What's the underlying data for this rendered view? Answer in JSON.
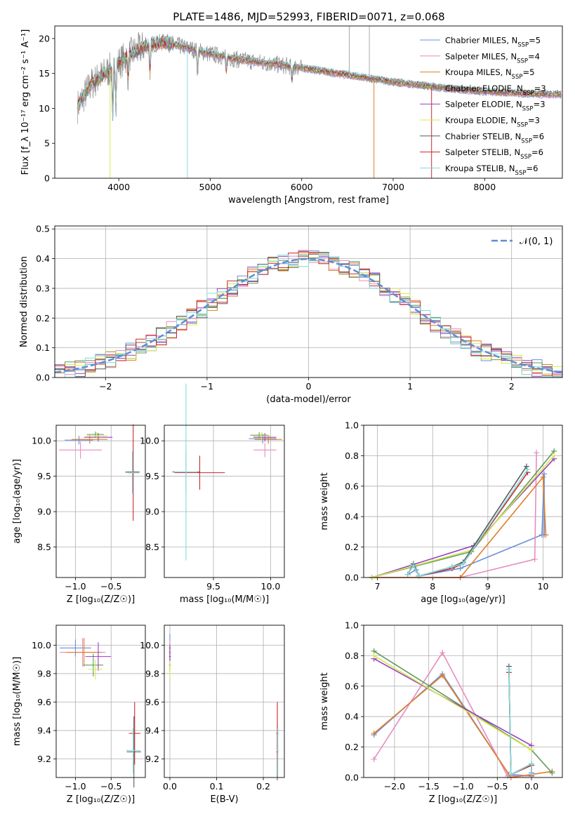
{
  "figure": {
    "title": "PLATE=1486, MJD=52993, FIBERID=0071, z=0.068"
  },
  "chart_data": [
    {
      "id": "spectrum",
      "type": "line",
      "title": "PLATE=1486, MJD=52993, FIBERID=0071, z=0.068",
      "xlabel": "wavelength [Angstrom, rest frame]",
      "ylabel": "Flux [f_λ 10⁻¹⁷ erg cm⁻² s⁻¹ A⁻¹]",
      "xlim": [
        3300,
        8850
      ],
      "ylim": [
        0,
        21.8
      ],
      "xticks": [
        4000,
        5000,
        6000,
        7000,
        8000
      ],
      "yticks": [
        0,
        5,
        10,
        15,
        20
      ],
      "grid": false,
      "legend_position": "top-right",
      "continuum": {
        "x": [
          3550,
          3700,
          3900,
          4100,
          4300,
          4500,
          4700,
          5000,
          5300,
          5600,
          6000,
          6500,
          7000,
          7500,
          8000,
          8500,
          8800
        ],
        "y": [
          10.3,
          13.5,
          15.5,
          17.5,
          19.0,
          19.5,
          18.8,
          17.8,
          17.0,
          16.5,
          15.8,
          14.8,
          13.8,
          13.0,
          12.4,
          12.1,
          12.0
        ]
      },
      "absorption_lines": [
        {
          "x": 3934,
          "depth": 7
        },
        {
          "x": 3969,
          "depth": 5
        },
        {
          "x": 4102,
          "depth": 3
        },
        {
          "x": 4341,
          "depth": 4
        },
        {
          "x": 4861,
          "depth": 3
        },
        {
          "x": 5175,
          "depth": 2
        },
        {
          "x": 5893,
          "depth": 2
        }
      ],
      "spikes": [
        {
          "x": 3905,
          "y_low": 0
        },
        {
          "x": 4750,
          "y_low": 0
        },
        {
          "x": 6790,
          "y_low": 0
        },
        {
          "x": 7420,
          "y_low": 0
        }
      ],
      "series": [
        {
          "name": "Chabrier MILES, N",
          "sub": "SSP",
          "suffix": "=5",
          "color": "#6a8fd8"
        },
        {
          "name": "Salpeter MILES, N",
          "sub": "SSP",
          "suffix": "=4",
          "color": "#e68cbe"
        },
        {
          "name": "Kroupa MILES, N",
          "sub": "SSP",
          "suffix": "=5",
          "color": "#e07d28"
        },
        {
          "name": "Chabrier ELODIE, N",
          "sub": "SSP",
          "suffix": "=3",
          "color": "#5f9a5f"
        },
        {
          "name": "Salpeter ELODIE, N",
          "sub": "SSP",
          "suffix": "=3",
          "color": "#9a3fbf"
        },
        {
          "name": "Kroupa ELODIE, N",
          "sub": "SSP",
          "suffix": "=3",
          "color": "#d4e84e"
        },
        {
          "name": "Chabrier STELIB, N",
          "sub": "SSP",
          "suffix": "=6",
          "color": "#5a5a5a"
        },
        {
          "name": "Salpeter STELIB, N",
          "sub": "SSP",
          "suffix": "=6",
          "color": "#c8272d"
        },
        {
          "name": "Kroupa STELIB, N",
          "sub": "SSP",
          "suffix": "=6",
          "color": "#7fdcdc"
        }
      ]
    },
    {
      "id": "residuals",
      "type": "line",
      "xlabel": "(data-model)/error",
      "ylabel": "Normed distribution",
      "xlim": [
        -2.5,
        2.5
      ],
      "ylim": [
        0,
        0.51
      ],
      "xticks": [
        -2,
        -1,
        0,
        1,
        2
      ],
      "xtick_labels": [
        "−2",
        "−1",
        "0",
        "1",
        "2"
      ],
      "yticks": [
        0.0,
        0.1,
        0.2,
        0.3,
        0.4,
        0.5
      ],
      "ytick_labels": [
        "0.0",
        "0.1",
        "0.2",
        "0.3",
        "0.4",
        "0.5"
      ],
      "grid": true,
      "legend_position": "top-right",
      "gaussian": {
        "label": "𝒩(0, 1)",
        "mu": 0,
        "sigma": 1,
        "color": "#5b8ed6"
      },
      "bin_width": 0.1
    },
    {
      "id": "age-vs-Z",
      "type": "scatter",
      "xlabel": "Z [log₁₀(Z/Z☉)]",
      "ylabel": "age  [log₁₀(age/yr)]",
      "xlim": [
        -1.27,
        -0.02
      ],
      "ylim": [
        8.07,
        10.22
      ],
      "xticks": [
        -1.0,
        -0.5
      ],
      "xtick_labels": [
        "−1.0",
        "−0.5"
      ],
      "yticks": [
        8.5,
        9.0,
        9.5,
        10.0
      ],
      "ytick_labels": [
        "8.5",
        "9.0",
        "9.5",
        "10.0"
      ],
      "grid": true
    },
    {
      "id": "age-vs-mass",
      "type": "scatter",
      "xlabel": "mass [log₁₀(M/M☉)]",
      "ylabel": "",
      "xlim": [
        9.07,
        10.12
      ],
      "ylim": [
        8.07,
        10.22
      ],
      "xticks": [
        9.5,
        10.0
      ],
      "xtick_labels": [
        "9.5",
        "10.0"
      ],
      "yticks": [
        8.5,
        9.0,
        9.5,
        10.0
      ],
      "ytick_labels": [
        "8.5",
        "9.0",
        "9.5",
        "10.0"
      ],
      "grid": true
    },
    {
      "id": "massweight-vs-age",
      "type": "line",
      "xlabel": "age  [log₁₀(age/yr)]",
      "ylabel": "mass weight",
      "xlim": [
        6.75,
        10.35
      ],
      "ylim": [
        0,
        1.0
      ],
      "xticks": [
        7,
        8,
        9,
        10
      ],
      "xtick_labels": [
        "7",
        "8",
        "9",
        "10"
      ],
      "yticks": [
        0.0,
        0.2,
        0.4,
        0.6,
        0.8,
        1.0
      ],
      "ytick_labels": [
        "0.0",
        "0.2",
        "0.4",
        "0.6",
        "0.8",
        "1.0"
      ],
      "grid": true,
      "series": [
        {
          "color": "#6a8fd8",
          "x": [
            7.55,
            7.7,
            7.75,
            8.5,
            9.98,
            10.02,
            10.02
          ],
          "y": [
            0.02,
            0.05,
            0.01,
            0.06,
            0.28,
            0.68,
            0.28
          ]
        },
        {
          "color": "#e68cbe",
          "x": [
            6.9,
            8.5,
            9.85,
            9.88
          ],
          "y": [
            0.0,
            0.0,
            0.12,
            0.82
          ]
        },
        {
          "color": "#e07d28",
          "x": [
            6.9,
            8.5,
            10.0,
            10.05
          ],
          "y": [
            0.0,
            0.0,
            0.66,
            0.28
          ]
        },
        {
          "color": "#5f9a5f",
          "x": [
            6.9,
            8.7,
            10.2
          ],
          "y": [
            0.0,
            0.17,
            0.83
          ]
        },
        {
          "color": "#9a3fbf",
          "x": [
            6.9,
            8.75,
            10.2
          ],
          "y": [
            0.0,
            0.21,
            0.78
          ]
        },
        {
          "color": "#d4e84e",
          "x": [
            6.9,
            8.7,
            10.2
          ],
          "y": [
            0.0,
            0.18,
            0.8
          ]
        },
        {
          "color": "#5a5a5a",
          "x": [
            7.55,
            7.65,
            7.75,
            8.35,
            8.55,
            9.7
          ],
          "y": [
            0.02,
            0.09,
            0.01,
            0.07,
            0.1,
            0.73
          ]
        },
        {
          "color": "#c8272d",
          "x": [
            7.55,
            7.65,
            7.75,
            8.35,
            8.55,
            9.72
          ],
          "y": [
            0.02,
            0.08,
            0.01,
            0.06,
            0.09,
            0.69
          ]
        },
        {
          "color": "#7fdcdc",
          "x": [
            7.55,
            7.65,
            7.75,
            8.35,
            8.55,
            9.72
          ],
          "y": [
            0.02,
            0.08,
            0.01,
            0.07,
            0.09,
            0.71
          ]
        }
      ]
    },
    {
      "id": "mass-vs-Z",
      "type": "scatter",
      "xlabel": "Z [log₁₀(Z/Z☉)]",
      "ylabel": "mass [log₁₀(M/M☉)]",
      "xlim": [
        -1.27,
        -0.02
      ],
      "ylim": [
        9.07,
        10.14
      ],
      "xticks": [
        -1.0,
        -0.5
      ],
      "xtick_labels": [
        "−1.0",
        "−0.5"
      ],
      "yticks": [
        9.2,
        9.4,
        9.6,
        9.8,
        10.0
      ],
      "ytick_labels": [
        "9.2",
        "9.4",
        "9.6",
        "9.8",
        "10.0"
      ],
      "grid": true
    },
    {
      "id": "mass-vs-ebv",
      "type": "scatter",
      "xlabel": "E(B-V)",
      "ylabel": "",
      "xlim": [
        -0.012,
        0.245
      ],
      "ylim": [
        9.07,
        10.14
      ],
      "xticks": [
        0.0,
        0.1,
        0.2
      ],
      "xtick_labels": [
        "0.0",
        "0.1",
        "0.2"
      ],
      "yticks": [
        9.2,
        9.4,
        9.6,
        9.8,
        10.0
      ],
      "ytick_labels": [
        "9.2",
        "9.4",
        "9.6",
        "9.8",
        "10.0"
      ],
      "grid": true
    },
    {
      "id": "massweight-vs-Z",
      "type": "line",
      "xlabel": "Z [log₁₀(Z/Z☉)]",
      "ylabel": "mass weight",
      "xlim": [
        -2.45,
        0.45
      ],
      "ylim": [
        0,
        1.0
      ],
      "xticks": [
        -2.0,
        -1.5,
        -1.0,
        -0.5,
        0.0
      ],
      "xtick_labels": [
        "−2.0",
        "−1.5",
        "−1.0",
        "−0.5",
        "0.0"
      ],
      "yticks": [
        0.0,
        0.2,
        0.4,
        0.6,
        0.8,
        1.0
      ],
      "ytick_labels": [
        "0.0",
        "0.2",
        "0.4",
        "0.6",
        "0.8",
        "1.0"
      ],
      "grid": true,
      "series": [
        {
          "color": "#6a8fd8",
          "x": [
            -2.3,
            -1.3,
            -0.33,
            0.0,
            0.0
          ],
          "y": [
            0.28,
            0.68,
            0.02,
            0.01,
            0.03
          ]
        },
        {
          "color": "#e68cbe",
          "x": [
            -2.3,
            -1.3,
            -0.35,
            0.0
          ],
          "y": [
            0.12,
            0.82,
            0.01,
            0.01
          ]
        },
        {
          "color": "#e07d28",
          "x": [
            -2.3,
            -1.3,
            -0.3,
            0.3
          ],
          "y": [
            0.29,
            0.67,
            0.0,
            0.04
          ]
        },
        {
          "color": "#5f9a5f",
          "x": [
            -2.3,
            0.0,
            0.3
          ],
          "y": [
            0.83,
            0.18,
            0.03
          ]
        },
        {
          "color": "#9a3fbf",
          "x": [
            -2.3,
            0.0
          ],
          "y": [
            0.78,
            0.21
          ]
        },
        {
          "color": "#d4e84e",
          "x": [
            -2.3,
            0.0
          ],
          "y": [
            0.8,
            0.18
          ]
        },
        {
          "color": "#5a5a5a",
          "x": [
            -0.33,
            -0.3,
            0.0,
            0.0
          ],
          "y": [
            0.73,
            0.02,
            0.09,
            0.02
          ]
        },
        {
          "color": "#c8272d",
          "x": [
            -0.33,
            -0.3,
            0.0,
            0.0
          ],
          "y": [
            0.69,
            0.02,
            0.08,
            0.01
          ]
        },
        {
          "color": "#7fdcdc",
          "x": [
            -0.33,
            -0.3,
            0.0,
            0.0
          ],
          "y": [
            0.71,
            0.02,
            0.09,
            0.02
          ]
        }
      ]
    }
  ]
}
